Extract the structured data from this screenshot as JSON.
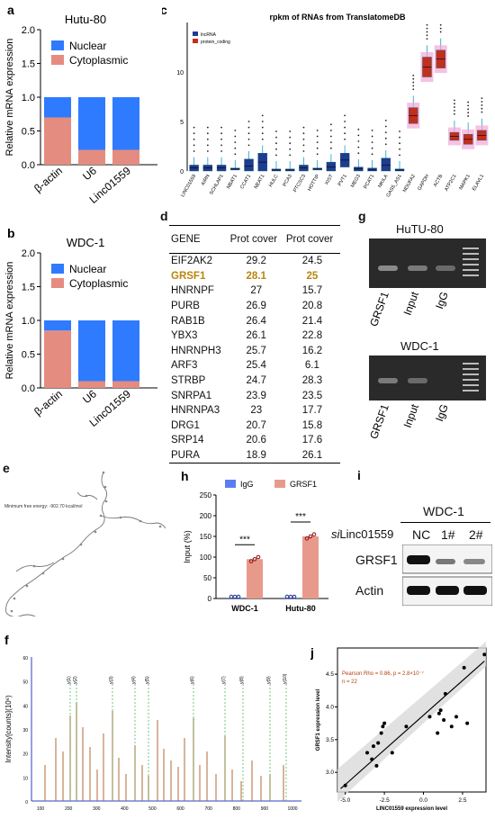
{
  "panel_labels": {
    "a": "a",
    "b": "b",
    "c": "c",
    "d": "d",
    "e": "e",
    "f": "f",
    "g": "g",
    "h": "h",
    "i": "i",
    "j": "j"
  },
  "colors": {
    "nuclear": "#2e7bff",
    "cytoplasmic": "#e58c80",
    "lncrna": "#1f3c8f",
    "protein_coding": "#c0301c",
    "igg": "#5a7ef0",
    "grsf1": "#e79a8c"
  },
  "chart_data": [
    {
      "id": "a",
      "type": "bar",
      "title": "Hutu-80",
      "ylabel": "Relative mRNA expression",
      "ylim": [
        0,
        2.0
      ],
      "yticks": [
        "0.0",
        "0.5",
        "1.0",
        "1.5",
        "2.0"
      ],
      "categories": [
        "β-actin",
        "U6",
        "Linc01559"
      ],
      "series": [
        {
          "name": "Nuclear",
          "values": [
            0.3,
            0.78,
            0.78
          ]
        },
        {
          "name": "Cytoplasmic",
          "values": [
            0.7,
            0.22,
            0.22
          ]
        }
      ],
      "legend": "top-right"
    },
    {
      "id": "b",
      "type": "bar",
      "title": "WDC-1",
      "ylabel": "Relative mRNA expression",
      "ylim": [
        0,
        2.0
      ],
      "yticks": [
        "0.0",
        "0.5",
        "1.0",
        "1.5",
        "2.0"
      ],
      "categories": [
        "β-actin",
        "U6",
        "Linc01559"
      ],
      "series": [
        {
          "name": "Nuclear",
          "values": [
            0.15,
            0.9,
            0.9
          ]
        },
        {
          "name": "Cytoplasmic",
          "values": [
            0.85,
            0.1,
            0.1
          ]
        }
      ],
      "legend": "top-right"
    },
    {
      "id": "c",
      "type": "box",
      "title": "rpkm of RNAs from TranslatomeDB",
      "ylim": [
        0,
        15
      ],
      "yticks": [
        "0",
        "5",
        "10"
      ],
      "legend": [
        {
          "name": "lncRNA"
        },
        {
          "name": "protein_coding"
        }
      ],
      "categories": [
        "LINC01559",
        "AIRN",
        "SCHLAP1",
        "NBAT1",
        "CCAT1",
        "NEAT1",
        "HULC",
        "PCA3",
        "PTCSC3",
        "HOTTIP",
        "XIST",
        "PVT1",
        "MEG3",
        "PCAT1",
        "NKILA",
        "GAS5_AS1",
        "NDUFA2",
        "GAPDH",
        "ACTB",
        "ATP2C1",
        "MAPK1",
        "ELAVL1"
      ],
      "medians": [
        0.3,
        0.3,
        0.3,
        0.2,
        0.5,
        0.9,
        0.1,
        0.1,
        0.3,
        0.2,
        0.4,
        1.1,
        0.2,
        0.1,
        0.6,
        0.1,
        5.6,
        10.5,
        11.3,
        3.5,
        3.2,
        3.6
      ],
      "q3": [
        0.6,
        0.6,
        0.6,
        0.3,
        1.2,
        1.8,
        0.2,
        0.2,
        0.6,
        0.3,
        0.9,
        1.8,
        0.4,
        0.3,
        1.3,
        0.2,
        6.4,
        11.5,
        12.2,
        3.9,
        3.7,
        4.1
      ],
      "types": [
        "lnc",
        "lnc",
        "lnc",
        "lnc",
        "lnc",
        "lnc",
        "lnc",
        "lnc",
        "lnc",
        "lnc",
        "lnc",
        "lnc",
        "lnc",
        "lnc",
        "lnc",
        "lnc",
        "pc",
        "pc",
        "pc",
        "pc",
        "pc",
        "pc"
      ]
    },
    {
      "id": "h",
      "type": "bar",
      "ylabel": "Input (%)",
      "ylim": [
        0,
        250
      ],
      "yticks": [
        "0",
        "50",
        "100",
        "150",
        "200",
        "250"
      ],
      "categories": [
        "WDC-1",
        "Hutu-80"
      ],
      "series": [
        {
          "name": "IgG",
          "values": [
            2,
            2
          ]
        },
        {
          "name": "GRSF1",
          "values": [
            95,
            150
          ]
        }
      ],
      "significance": [
        "***",
        "***"
      ],
      "legend": "top"
    },
    {
      "id": "j",
      "type": "scatter",
      "xlabel": "LINC01559 expression level",
      "ylabel": "GRSF1 expression level",
      "annotation": "Pearson Rho = 0.86, p = 2.8×10⁻⁷",
      "n": "n = 22",
      "xlim": [
        -5.5,
        4
      ],
      "ylim": [
        2.7,
        4.9
      ],
      "xticks": [
        "-5.0",
        "-2.5",
        "0.0",
        "2.5"
      ],
      "yticks": [
        "3.0",
        "3.5",
        "4.0",
        "4.5"
      ],
      "x": [
        -5.0,
        -3.6,
        -3.3,
        -3.2,
        -3.0,
        -2.9,
        -2.7,
        -2.6,
        -2.5,
        -2.0,
        -1.1,
        0.4,
        0.9,
        1.0,
        1.1,
        1.3,
        1.4,
        1.8,
        2.1,
        2.6,
        2.8,
        3.9
      ],
      "y": [
        2.8,
        3.3,
        3.2,
        3.4,
        3.1,
        3.45,
        3.6,
        3.7,
        3.75,
        3.3,
        3.7,
        3.85,
        3.6,
        3.9,
        3.95,
        3.8,
        4.2,
        3.7,
        3.85,
        4.6,
        3.75,
        4.8
      ]
    }
  ],
  "panel_d": {
    "headers": [
      "GENE",
      "Prot cover",
      "Prot cover"
    ],
    "rows": [
      [
        "EIF2AK2",
        "29.2",
        "24.5"
      ],
      [
        "GRSF1",
        "28.1",
        "25"
      ],
      [
        "HNRNPF",
        "27",
        "15.7"
      ],
      [
        "PURB",
        "26.9",
        "20.8"
      ],
      [
        "RAB1B",
        "26.4",
        "21.4"
      ],
      [
        "YBX3",
        "26.1",
        "22.8"
      ],
      [
        "HNRNPH3",
        "25.7",
        "16.2"
      ],
      [
        "ARF3",
        "25.4",
        "6.1"
      ],
      [
        "STRBP",
        "24.7",
        "28.3"
      ],
      [
        "SNRPA1",
        "23.9",
        "23.5"
      ],
      [
        "HNRNPA3",
        "23",
        "17.7"
      ],
      [
        "DRG1",
        "20.7",
        "15.8"
      ],
      [
        "SRP14",
        "20.6",
        "17.6"
      ],
      [
        "PURA",
        "18.9",
        "26.1"
      ]
    ]
  },
  "panel_e": {
    "mfe": "Minimum free energy: -902.70 kcal/mol"
  },
  "panel_f": {
    "ylabel": "Intensity[counts](10⁶)",
    "yticks": [
      "0",
      "10",
      "20",
      "30",
      "40",
      "50",
      "60"
    ],
    "xticks": [
      "100",
      "200",
      "300",
      "400",
      "500",
      "600",
      "700",
      "800",
      "900",
      "1000"
    ],
    "ions": [
      "y(1)",
      "y(2)",
      "y(3)",
      "y(4)",
      "y(5)",
      "y(6)",
      "y(7)",
      "y(8)",
      "y(9)",
      "y(10)"
    ]
  },
  "panel_g": {
    "top_title": "HuTU-80",
    "bottom_title": "WDC-1",
    "lanes": [
      "GRSF1",
      "Input",
      "IgG"
    ]
  },
  "panel_i": {
    "title": "WDC-1",
    "row_label": "siLinc01559",
    "lanes": [
      "NC",
      "1#",
      "2#"
    ],
    "bands": [
      "GRSF1",
      "Actin"
    ]
  }
}
